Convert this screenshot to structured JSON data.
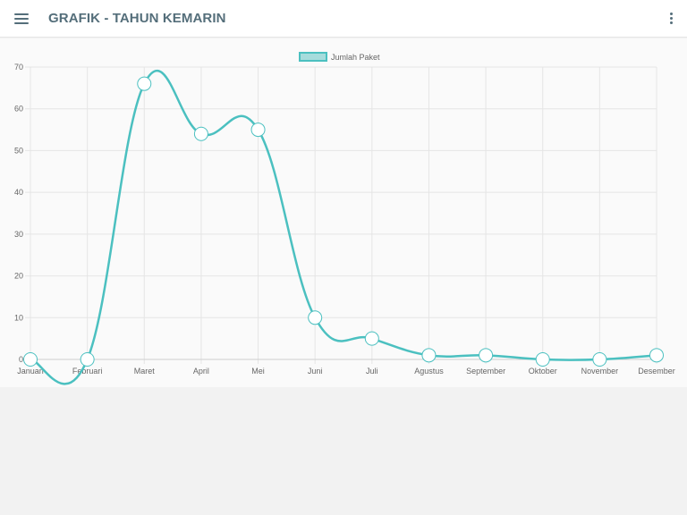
{
  "app_bar": {
    "title": "GRAFIK - TAHUN KEMARIN",
    "menu_icon": "hamburger-menu-icon",
    "more_icon": "more-vertical-icon"
  },
  "colors": {
    "accent": "#546e7a",
    "series_line": "#4bc0c0",
    "series_fill": "#a6dcdc",
    "grid": "#e5e5e5",
    "point_fill": "#ffffff"
  },
  "chart_data": {
    "type": "line",
    "categories": [
      "Januari",
      "Februari",
      "Maret",
      "April",
      "Mei",
      "Juni",
      "Juli",
      "Agustus",
      "September",
      "Oktober",
      "November",
      "Desember"
    ],
    "series": [
      {
        "name": "Jumlah Paket",
        "values": [
          0,
          0,
          66,
          54,
          55,
          10,
          5,
          1,
          1,
          0,
          0,
          1
        ]
      }
    ],
    "ylim": [
      0,
      70
    ],
    "yticks": [
      0,
      10,
      20,
      30,
      40,
      50,
      60,
      70
    ],
    "grid": true,
    "legend_position": "top-center"
  }
}
